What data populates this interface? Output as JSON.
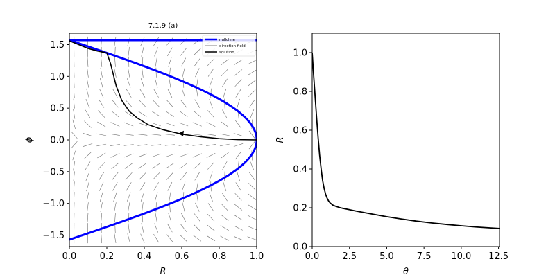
{
  "chart_data": [
    {
      "type": "line",
      "title": "7.1.9 (a)",
      "xlabel": "R",
      "ylabel": "ϕ",
      "xlim": [
        0.0,
        1.0
      ],
      "ylim": [
        -1.68,
        1.68
      ],
      "xticks": [
        0.0,
        0.2,
        0.4,
        0.6,
        0.8,
        1.0
      ],
      "xtick_labels": [
        "0.0",
        "0.2",
        "0.4",
        "0.6",
        "0.8",
        "1.0"
      ],
      "yticks": [
        -1.5,
        -1.0,
        -0.5,
        0.0,
        0.5,
        1.0,
        1.5
      ],
      "ytick_labels": [
        "−1.5",
        "−1.0",
        "−0.5",
        "0.0",
        "0.5",
        "1.0",
        "1.5"
      ],
      "legend": {
        "placement": "top-right",
        "entries": [
          {
            "label": "nullcline",
            "color": "#0000ff"
          },
          {
            "label": "direction field",
            "color": "#808080"
          },
          {
            "label": "solution",
            "color": "#000000"
          }
        ]
      },
      "series": [
        {
          "name": "nullcline",
          "color": "#0000ff",
          "curves": [
            {
              "kind": "parametric",
              "equation": "R = cos(phi)",
              "param_range": [
                -1.5708,
                1.5708
              ]
            },
            {
              "kind": "line",
              "x": [
                0.0,
                1.0
              ],
              "y": [
                1.5708,
                1.5708
              ]
            }
          ]
        },
        {
          "name": "solution",
          "color": "#000000",
          "x": [
            0.0,
            0.05,
            0.1,
            0.15,
            0.2,
            0.22,
            0.25,
            0.28,
            0.32,
            0.36,
            0.42,
            0.5,
            0.6,
            0.7,
            0.8,
            0.9,
            1.0
          ],
          "y": [
            1.56,
            1.5,
            1.44,
            1.4,
            1.37,
            1.2,
            0.85,
            0.62,
            0.45,
            0.35,
            0.24,
            0.16,
            0.09,
            0.05,
            0.02,
            0.004,
            0.0
          ],
          "arrow": {
            "x": 0.6,
            "y": 0.09,
            "direction": "left"
          }
        },
        {
          "name": "direction field",
          "color": "#808080",
          "field": {
            "dR": "R*(cos(phi) - R)",
            "dphi": "-sin(phi)",
            "x_range": [
              0.025,
              0.975
            ],
            "y_range": [
              -1.55,
              1.55
            ],
            "nx": 14,
            "ny": 20
          }
        }
      ]
    },
    {
      "type": "line",
      "title": "",
      "xlabel": "θ",
      "ylabel": "R",
      "xlim": [
        0.0,
        12.566
      ],
      "ylim": [
        0.0,
        1.1
      ],
      "xticks": [
        0.0,
        2.5,
        5.0,
        7.5,
        10.0,
        12.5
      ],
      "xtick_labels": [
        "0.0",
        "2.5",
        "5.0",
        "7.5",
        "10.0",
        "12.5"
      ],
      "yticks": [
        0.0,
        0.2,
        0.4,
        0.6,
        0.8,
        1.0
      ],
      "ytick_labels": [
        "0.0",
        "0.2",
        "0.4",
        "0.6",
        "0.8",
        "1.0"
      ],
      "series": [
        {
          "name": "",
          "color": "#000000",
          "x": [
            0.0,
            0.1,
            0.2,
            0.3,
            0.4,
            0.5,
            0.6,
            0.7,
            0.8,
            0.9,
            1.0,
            1.1,
            1.2,
            1.4,
            1.6,
            1.8,
            2.0,
            2.5,
            3.0,
            4.0,
            5.0,
            6.0,
            7.0,
            8.0,
            9.0,
            10.0,
            11.0,
            12.0,
            12.566
          ],
          "y": [
            1.0,
            0.88,
            0.77,
            0.66,
            0.56,
            0.47,
            0.4,
            0.34,
            0.3,
            0.27,
            0.25,
            0.235,
            0.225,
            0.213,
            0.207,
            0.202,
            0.198,
            0.19,
            0.182,
            0.168,
            0.154,
            0.142,
            0.131,
            0.122,
            0.114,
            0.107,
            0.101,
            0.096,
            0.093
          ]
        }
      ]
    }
  ]
}
